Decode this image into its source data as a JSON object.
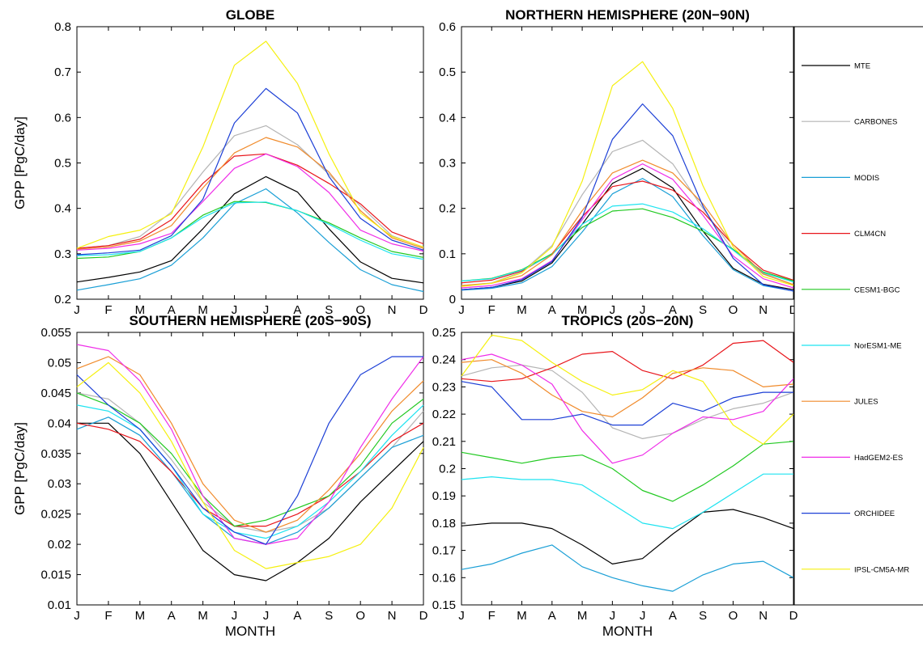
{
  "chart_data": [
    {
      "type": "line",
      "title": "GLOBE",
      "xlabel": "",
      "ylabel": "GPP [PgC/day]",
      "ylim": [
        0.2,
        0.8
      ],
      "yticks": [
        "0.2",
        "0.3",
        "0.4",
        "0.5",
        "0.6",
        "0.7",
        "0.8"
      ],
      "categories": [
        "J",
        "F",
        "M",
        "A",
        "M",
        "J",
        "J",
        "A",
        "S",
        "O",
        "N",
        "D"
      ],
      "series": [
        {
          "name": "MTE",
          "values": [
            0.238,
            0.248,
            0.26,
            0.285,
            0.355,
            0.432,
            0.47,
            0.436,
            0.355,
            0.282,
            0.246,
            0.236
          ]
        },
        {
          "name": "CARBONES",
          "values": [
            0.312,
            0.318,
            0.338,
            0.392,
            0.48,
            0.56,
            0.582,
            0.54,
            0.475,
            0.405,
            0.34,
            0.314
          ]
        },
        {
          "name": "MODIS",
          "values": [
            0.22,
            0.232,
            0.245,
            0.275,
            0.335,
            0.41,
            0.443,
            0.39,
            0.325,
            0.265,
            0.232,
            0.217
          ]
        },
        {
          "name": "CLM4CN",
          "values": [
            0.312,
            0.318,
            0.332,
            0.375,
            0.455,
            0.515,
            0.52,
            0.495,
            0.455,
            0.41,
            0.348,
            0.322
          ]
        },
        {
          "name": "CESM1-BGC",
          "values": [
            0.29,
            0.293,
            0.305,
            0.335,
            0.385,
            0.415,
            0.413,
            0.395,
            0.368,
            0.335,
            0.305,
            0.292
          ]
        },
        {
          "name": "NorESM1-ME",
          "values": [
            0.296,
            0.298,
            0.305,
            0.335,
            0.38,
            0.412,
            0.414,
            0.395,
            0.365,
            0.33,
            0.3,
            0.288
          ]
        },
        {
          "name": "JULES",
          "values": [
            0.31,
            0.315,
            0.328,
            0.362,
            0.445,
            0.522,
            0.556,
            0.535,
            0.48,
            0.395,
            0.335,
            0.312
          ]
        },
        {
          "name": "HadGEM2-ES",
          "values": [
            0.308,
            0.312,
            0.322,
            0.345,
            0.415,
            0.488,
            0.52,
            0.492,
            0.435,
            0.352,
            0.322,
            0.306
          ]
        },
        {
          "name": "ORCHIDEE",
          "values": [
            0.298,
            0.302,
            0.308,
            0.34,
            0.42,
            0.588,
            0.664,
            0.61,
            0.47,
            0.378,
            0.33,
            0.308
          ]
        },
        {
          "name": "IPSL-CM5A-MR",
          "values": [
            0.312,
            0.338,
            0.352,
            0.388,
            0.535,
            0.715,
            0.768,
            0.675,
            0.52,
            0.39,
            0.338,
            0.315
          ]
        }
      ]
    },
    {
      "type": "line",
      "title": "NORTHERN HEMISPHERE (20N−90N)",
      "xlabel": "",
      "ylabel": "",
      "ylim": [
        0,
        0.6
      ],
      "yticks": [
        "0",
        "0.1",
        "0.2",
        "0.3",
        "0.4",
        "0.5",
        "0.6"
      ],
      "categories": [
        "J",
        "F",
        "M",
        "A",
        "M",
        "J",
        "J",
        "A",
        "S",
        "O",
        "N",
        "D"
      ],
      "series": [
        {
          "name": "MTE",
          "values": [
            0.021,
            0.026,
            0.04,
            0.08,
            0.165,
            0.255,
            0.288,
            0.245,
            0.15,
            0.068,
            0.033,
            0.021
          ]
        },
        {
          "name": "CARBONES",
          "values": [
            0.03,
            0.036,
            0.06,
            0.118,
            0.23,
            0.325,
            0.35,
            0.298,
            0.2,
            0.108,
            0.055,
            0.032
          ]
        },
        {
          "name": "MODIS",
          "values": [
            0.02,
            0.024,
            0.036,
            0.072,
            0.148,
            0.232,
            0.266,
            0.226,
            0.14,
            0.065,
            0.03,
            0.018
          ]
        },
        {
          "name": "CLM4CN",
          "values": [
            0.036,
            0.042,
            0.062,
            0.1,
            0.182,
            0.248,
            0.26,
            0.24,
            0.192,
            0.12,
            0.064,
            0.042
          ]
        },
        {
          "name": "CESM1-BGC",
          "values": [
            0.04,
            0.046,
            0.065,
            0.1,
            0.158,
            0.194,
            0.199,
            0.18,
            0.15,
            0.11,
            0.06,
            0.04
          ]
        },
        {
          "name": "NorESM1-ME",
          "values": [
            0.04,
            0.045,
            0.064,
            0.098,
            0.165,
            0.205,
            0.21,
            0.192,
            0.155,
            0.108,
            0.058,
            0.038
          ]
        },
        {
          "name": "JULES",
          "values": [
            0.03,
            0.035,
            0.052,
            0.098,
            0.195,
            0.278,
            0.306,
            0.278,
            0.21,
            0.12,
            0.056,
            0.032
          ]
        },
        {
          "name": "HadGEM2-ES",
          "values": [
            0.025,
            0.03,
            0.045,
            0.085,
            0.175,
            0.264,
            0.298,
            0.264,
            0.185,
            0.095,
            0.045,
            0.025
          ]
        },
        {
          "name": "ORCHIDEE",
          "values": [
            0.021,
            0.026,
            0.043,
            0.083,
            0.18,
            0.352,
            0.43,
            0.36,
            0.205,
            0.09,
            0.032,
            0.018
          ]
        },
        {
          "name": "IPSL-CM5A-MR",
          "values": [
            0.028,
            0.035,
            0.058,
            0.115,
            0.26,
            0.47,
            0.523,
            0.42,
            0.25,
            0.115,
            0.05,
            0.03
          ]
        }
      ]
    },
    {
      "type": "line",
      "title": "SOUTHERN HEMISPHERE (20S−90S)",
      "xlabel": "MONTH",
      "ylabel": "GPP [PgC/day]",
      "ylim": [
        0.01,
        0.055
      ],
      "yticks": [
        "0.01",
        "0.015",
        "0.02",
        "0.025",
        "0.03",
        "0.035",
        "0.04",
        "0.045",
        "0.05",
        "0.055"
      ],
      "categories": [
        "J",
        "F",
        "M",
        "A",
        "M",
        "J",
        "J",
        "A",
        "S",
        "O",
        "N",
        "D"
      ],
      "series": [
        {
          "name": "MTE",
          "values": [
            0.04,
            0.04,
            0.035,
            0.027,
            0.019,
            0.015,
            0.014,
            0.017,
            0.021,
            0.027,
            0.032,
            0.037
          ]
        },
        {
          "name": "CARBONES",
          "values": [
            0.045,
            0.044,
            0.04,
            0.034,
            0.027,
            0.023,
            0.022,
            0.023,
            0.026,
            0.031,
            0.036,
            0.042
          ]
        },
        {
          "name": "MODIS",
          "values": [
            0.039,
            0.041,
            0.038,
            0.032,
            0.025,
            0.021,
            0.02,
            0.022,
            0.026,
            0.031,
            0.036,
            0.038
          ]
        },
        {
          "name": "CLM4CN",
          "values": [
            0.04,
            0.039,
            0.037,
            0.032,
            0.026,
            0.023,
            0.023,
            0.025,
            0.028,
            0.032,
            0.037,
            0.04
          ]
        },
        {
          "name": "CESM1-BGC",
          "values": [
            0.045,
            0.043,
            0.04,
            0.035,
            0.028,
            0.023,
            0.024,
            0.026,
            0.028,
            0.033,
            0.04,
            0.044
          ]
        },
        {
          "name": "NorESM1-ME",
          "values": [
            0.043,
            0.042,
            0.039,
            0.033,
            0.025,
            0.022,
            0.021,
            0.023,
            0.027,
            0.032,
            0.038,
            0.043
          ]
        },
        {
          "name": "JULES",
          "values": [
            0.049,
            0.051,
            0.048,
            0.04,
            0.03,
            0.024,
            0.022,
            0.024,
            0.029,
            0.035,
            0.042,
            0.047
          ]
        },
        {
          "name": "HadGEM2-ES",
          "values": [
            0.053,
            0.052,
            0.047,
            0.039,
            0.028,
            0.021,
            0.02,
            0.021,
            0.027,
            0.036,
            0.044,
            0.051
          ]
        },
        {
          "name": "ORCHIDEE",
          "values": [
            0.048,
            0.043,
            0.039,
            0.033,
            0.026,
            0.022,
            0.02,
            0.028,
            0.04,
            0.048,
            0.051,
            0.051
          ]
        },
        {
          "name": "IPSL-CM5A-MR",
          "values": [
            0.046,
            0.05,
            0.045,
            0.037,
            0.027,
            0.019,
            0.016,
            0.017,
            0.018,
            0.02,
            0.026,
            0.036
          ]
        }
      ]
    },
    {
      "type": "line",
      "title": "TROPICS (20S−20N)",
      "xlabel": "MONTH",
      "ylabel": "",
      "ylim": [
        0.15,
        0.25
      ],
      "yticks": [
        "0.15",
        "0.16",
        "0.17",
        "0.18",
        "0.19",
        "0.2",
        "0.21",
        "0.22",
        "0.23",
        "0.24",
        "0.25"
      ],
      "categories": [
        "J",
        "F",
        "M",
        "A",
        "M",
        "J",
        "J",
        "A",
        "S",
        "O",
        "N",
        "D"
      ],
      "series": [
        {
          "name": "MTE",
          "values": [
            0.179,
            0.18,
            0.18,
            0.178,
            0.172,
            0.165,
            0.167,
            0.176,
            0.184,
            0.185,
            0.182,
            0.178
          ]
        },
        {
          "name": "CARBONES",
          "values": [
            0.234,
            0.237,
            0.238,
            0.236,
            0.228,
            0.215,
            0.211,
            0.213,
            0.218,
            0.222,
            0.224,
            0.228
          ]
        },
        {
          "name": "MODIS",
          "values": [
            0.163,
            0.165,
            0.169,
            0.172,
            0.164,
            0.16,
            0.157,
            0.155,
            0.161,
            0.165,
            0.166,
            0.16
          ]
        },
        {
          "name": "CLM4CN",
          "values": [
            0.233,
            0.232,
            0.233,
            0.237,
            0.242,
            0.243,
            0.236,
            0.233,
            0.238,
            0.246,
            0.247,
            0.239
          ]
        },
        {
          "name": "CESM1-BGC",
          "values": [
            0.206,
            0.204,
            0.202,
            0.204,
            0.205,
            0.2,
            0.192,
            0.188,
            0.194,
            0.201,
            0.209,
            0.21
          ]
        },
        {
          "name": "NorESM1-ME",
          "values": [
            0.196,
            0.197,
            0.196,
            0.196,
            0.194,
            0.187,
            0.18,
            0.178,
            0.184,
            0.191,
            0.198,
            0.198
          ]
        },
        {
          "name": "JULES",
          "values": [
            0.239,
            0.24,
            0.235,
            0.227,
            0.221,
            0.219,
            0.226,
            0.235,
            0.237,
            0.236,
            0.23,
            0.231
          ]
        },
        {
          "name": "HadGEM2-ES",
          "values": [
            0.24,
            0.242,
            0.238,
            0.231,
            0.214,
            0.202,
            0.205,
            0.213,
            0.219,
            0.218,
            0.221,
            0.233
          ]
        },
        {
          "name": "ORCHIDEE",
          "values": [
            0.232,
            0.23,
            0.218,
            0.218,
            0.22,
            0.216,
            0.216,
            0.224,
            0.221,
            0.226,
            0.228,
            0.228
          ]
        },
        {
          "name": "IPSL-CM5A-MR",
          "values": [
            0.234,
            0.249,
            0.247,
            0.239,
            0.232,
            0.227,
            0.229,
            0.236,
            0.232,
            0.216,
            0.209,
            0.22
          ]
        }
      ]
    }
  ],
  "legend": {
    "placement": "right",
    "entries": [
      {
        "label": "MTE",
        "color": "#000000"
      },
      {
        "label": "CARBONES",
        "color": "#b4b4b4"
      },
      {
        "label": "MODIS",
        "color": "#1a9fd6"
      },
      {
        "label": "CLM4CN",
        "color": "#e8151b"
      },
      {
        "label": "CESM1-BGC",
        "color": "#21c921"
      },
      {
        "label": "NorESM1-ME",
        "color": "#1ee3f0"
      },
      {
        "label": "JULES",
        "color": "#f08a2a"
      },
      {
        "label": "HadGEM2-ES",
        "color": "#ef2de8"
      },
      {
        "label": "ORCHIDEE",
        "color": "#1c3fd6"
      },
      {
        "label": "IPSL-CM5A-MR",
        "color": "#f5f00f"
      }
    ]
  }
}
